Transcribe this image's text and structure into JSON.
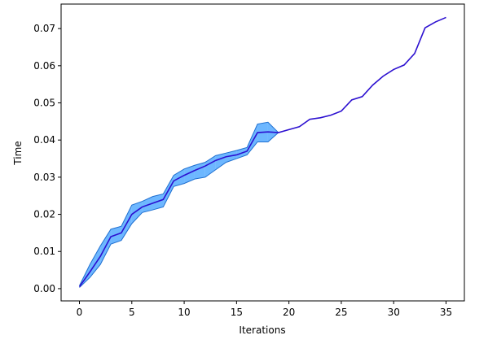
{
  "chart_data": {
    "type": "line",
    "xlabel": "Iterations",
    "ylabel": "Time",
    "x": [
      0,
      1,
      2,
      3,
      4,
      5,
      6,
      7,
      8,
      9,
      10,
      11,
      12,
      13,
      14,
      15,
      16,
      17,
      18,
      19,
      20,
      21,
      22,
      23,
      24,
      25,
      26,
      27,
      28,
      29,
      30,
      31,
      32,
      33,
      34,
      35
    ],
    "series": [
      {
        "color": "#2c10d0",
        "values": [
          0.0005,
          0.0045,
          0.0087,
          0.014,
          0.015,
          0.02,
          0.022,
          0.023,
          0.024,
          0.029,
          0.0305,
          0.0318,
          0.033,
          0.0345,
          0.0355,
          0.036,
          0.037,
          0.042,
          0.0422,
          0.042,
          0.0428,
          0.0436,
          0.0456,
          0.046,
          0.0467,
          0.0478,
          0.0508,
          0.0517,
          0.0548,
          0.0572,
          0.059,
          0.0602,
          0.0633,
          0.0702,
          0.0718,
          0.073
        ]
      }
    ],
    "band": {
      "color": "#1e90ff",
      "edge_color": "#1f6fd0",
      "x": [
        0,
        1,
        2,
        3,
        4,
        5,
        6,
        7,
        8,
        9,
        10,
        11,
        12,
        13,
        14,
        15,
        16,
        17,
        18,
        19
      ],
      "lower": [
        0.0003,
        0.003,
        0.0065,
        0.012,
        0.013,
        0.0175,
        0.0205,
        0.0212,
        0.022,
        0.0275,
        0.0283,
        0.0295,
        0.03,
        0.032,
        0.034,
        0.035,
        0.036,
        0.0395,
        0.0395,
        0.042
      ],
      "upper": [
        0.0008,
        0.0065,
        0.0115,
        0.016,
        0.0168,
        0.0225,
        0.0235,
        0.0248,
        0.0255,
        0.0305,
        0.0322,
        0.0332,
        0.034,
        0.0358,
        0.0365,
        0.0372,
        0.038,
        0.0443,
        0.0448,
        0.042
      ]
    },
    "xlim": [
      -1.75,
      36.75
    ],
    "ylim": [
      -0.0033,
      0.0766
    ],
    "xticks": [
      0,
      5,
      10,
      15,
      20,
      25,
      30,
      35
    ],
    "yticks": [
      {
        "value": 0,
        "label": "0.00"
      },
      0.01,
      0.02,
      0.03,
      0.04,
      0.05,
      0.06,
      0.07
    ]
  }
}
